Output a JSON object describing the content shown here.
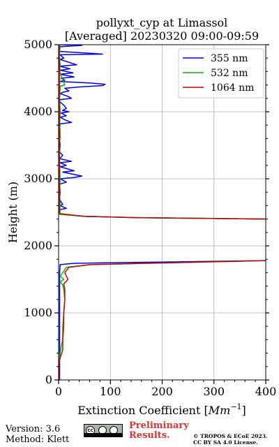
{
  "chart_data": {
    "type": "line",
    "title": "pollyxt_cyp at Limassol",
    "subtitle": "[Averaged] 20230320 09:00-09:59",
    "xlabel": "Extinction Coefficient [",
    "xlabel_unit": "Mm",
    "xlabel_exp": "−1",
    "xlabel_end": "]",
    "ylabel": "Height (m)",
    "xlim": [
      0,
      400
    ],
    "ylim": [
      0,
      5000
    ],
    "xticks": [
      0,
      100,
      200,
      300,
      400
    ],
    "yticks": [
      0,
      1000,
      2000,
      3000,
      4000,
      5000
    ],
    "grid": true,
    "legend_position": "top-right",
    "series": [
      {
        "name": "355 nm",
        "color": "#0000ee",
        "points": [
          [
            2,
            5000
          ],
          [
            45,
            4990
          ],
          [
            3,
            4970
          ],
          [
            2,
            4920
          ],
          [
            2,
            4900
          ],
          [
            85,
            4860
          ],
          [
            3,
            4850
          ],
          [
            10,
            4800
          ],
          [
            3,
            4780
          ],
          [
            35,
            4700
          ],
          [
            2,
            4680
          ],
          [
            22,
            4640
          ],
          [
            3,
            4620
          ],
          [
            28,
            4580
          ],
          [
            3,
            4560
          ],
          [
            30,
            4520
          ],
          [
            5,
            4500
          ],
          [
            12,
            4470
          ],
          [
            3,
            4450
          ],
          [
            60,
            4430
          ],
          [
            90,
            4410
          ],
          [
            85,
            4390
          ],
          [
            40,
            4370
          ],
          [
            12,
            4350
          ],
          [
            20,
            4310
          ],
          [
            8,
            4290
          ],
          [
            3,
            4270
          ],
          [
            18,
            4230
          ],
          [
            25,
            4200
          ],
          [
            3,
            4180
          ],
          [
            2,
            4150
          ],
          [
            10,
            4100
          ],
          [
            15,
            4050
          ],
          [
            8,
            4020
          ],
          [
            20,
            4000
          ],
          [
            5,
            3980
          ],
          [
            15,
            3940
          ],
          [
            3,
            3920
          ],
          [
            12,
            3880
          ],
          [
            25,
            3840
          ],
          [
            3,
            3820
          ],
          [
            2,
            3750
          ],
          [
            2,
            3700
          ],
          [
            3,
            3620
          ],
          [
            2,
            3600
          ],
          [
            3,
            3500
          ],
          [
            2,
            3400
          ],
          [
            8,
            3350
          ],
          [
            2,
            3300
          ],
          [
            25,
            3260
          ],
          [
            3,
            3240
          ],
          [
            15,
            3200
          ],
          [
            3,
            3180
          ],
          [
            30,
            3120
          ],
          [
            8,
            3100
          ],
          [
            45,
            3040
          ],
          [
            30,
            3020
          ],
          [
            3,
            3000
          ],
          [
            15,
            2950
          ],
          [
            2,
            2920
          ],
          [
            3,
            2800
          ],
          [
            2,
            2700
          ],
          [
            5,
            2650
          ],
          [
            8,
            2620
          ],
          [
            3,
            2600
          ],
          [
            15,
            2560
          ],
          [
            3,
            2540
          ],
          [
            2,
            2500
          ],
          [
            3,
            2470
          ],
          [
            50,
            2440
          ],
          [
            150,
            2420
          ],
          [
            400,
            2400
          ]
        ],
        "points_lower": [
          [
            400,
            1780
          ],
          [
            30,
            1740
          ],
          [
            3,
            1720
          ],
          [
            2,
            1600
          ],
          [
            2,
            1200
          ],
          [
            2,
            800
          ],
          [
            2,
            400
          ],
          [
            2,
            0
          ]
        ]
      },
      {
        "name": "532 nm",
        "color": "#00bb00",
        "points": [
          [
            2,
            5000
          ],
          [
            2,
            4800
          ],
          [
            3,
            4700
          ],
          [
            2,
            4600
          ],
          [
            12,
            4400
          ],
          [
            3,
            4380
          ],
          [
            2,
            4200
          ],
          [
            3,
            4000
          ],
          [
            2,
            3800
          ],
          [
            3,
            3700
          ],
          [
            2,
            3500
          ],
          [
            2,
            3200
          ],
          [
            3,
            3000
          ],
          [
            2,
            2800
          ],
          [
            3,
            2600
          ],
          [
            2,
            2470
          ],
          [
            50,
            2440
          ],
          [
            150,
            2420
          ],
          [
            400,
            2400
          ]
        ],
        "points_lower": [
          [
            400,
            1780
          ],
          [
            60,
            1720
          ],
          [
            15,
            1680
          ],
          [
            8,
            1600
          ],
          [
            3,
            1550
          ],
          [
            10,
            1500
          ],
          [
            3,
            1460
          ],
          [
            8,
            1420
          ],
          [
            10,
            1350
          ],
          [
            12,
            1200
          ],
          [
            10,
            1000
          ],
          [
            8,
            800
          ],
          [
            8,
            600
          ],
          [
            5,
            500
          ],
          [
            3,
            400
          ],
          [
            2,
            300
          ],
          [
            1,
            250
          ],
          [
            1,
            0
          ]
        ]
      },
      {
        "name": "1064 nm",
        "color": "#cc0000",
        "points": [
          [
            1,
            5000
          ],
          [
            1,
            4800
          ],
          [
            2,
            4600
          ],
          [
            2,
            4400
          ],
          [
            1,
            4200
          ],
          [
            2,
            4000
          ],
          [
            1,
            3800
          ],
          [
            2,
            3600
          ],
          [
            1,
            3400
          ],
          [
            2,
            3200
          ],
          [
            1,
            3000
          ],
          [
            2,
            2800
          ],
          [
            1,
            2600
          ],
          [
            2,
            2480
          ],
          [
            50,
            2440
          ],
          [
            150,
            2420
          ],
          [
            400,
            2400
          ]
        ],
        "points_lower": [
          [
            400,
            1780
          ],
          [
            60,
            1720
          ],
          [
            20,
            1680
          ],
          [
            12,
            1600
          ],
          [
            18,
            1500
          ],
          [
            10,
            1430
          ],
          [
            12,
            1350
          ],
          [
            12,
            1200
          ],
          [
            10,
            1000
          ],
          [
            10,
            800
          ],
          [
            8,
            600
          ],
          [
            8,
            450
          ],
          [
            4,
            350
          ],
          [
            1,
            280
          ],
          [
            1,
            0
          ]
        ]
      }
    ]
  },
  "footer": {
    "version": "Version: 3.6",
    "method": "Method: Klett",
    "cc_text": "cc",
    "preliminary_line1": "Preliminary",
    "preliminary_line2": "Results.",
    "copyright_line1": "© TROPOS & ECoE 2023.",
    "copyright_line2": "CC BY SA 4.0 License."
  }
}
